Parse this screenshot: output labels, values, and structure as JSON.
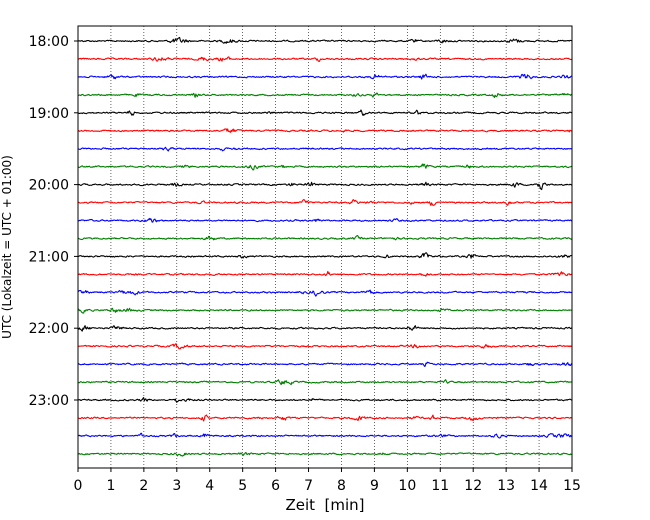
{
  "chart_data": {
    "type": "line",
    "title": "",
    "xlabel": "Zeit  [min]",
    "ylabel": "UTC (Lokalzeit = UTC + 01:00)",
    "xlim": [
      0,
      15
    ],
    "x_ticks": [
      "0",
      "1",
      "2",
      "3",
      "4",
      "5",
      "6",
      "7",
      "8",
      "9",
      "10",
      "11",
      "12",
      "13",
      "14",
      "15"
    ],
    "y_tick_labels": [
      "18:00",
      "19:00",
      "20:00",
      "21:00",
      "22:00",
      "23:00"
    ],
    "grid": "vertical dotted lines at each minute",
    "row_colors": [
      "#000000",
      "#ff0000",
      "#0000ff",
      "#007f00"
    ],
    "row_count": 24,
    "rows_per_hour": 4,
    "minutes_per_row": 15
  }
}
